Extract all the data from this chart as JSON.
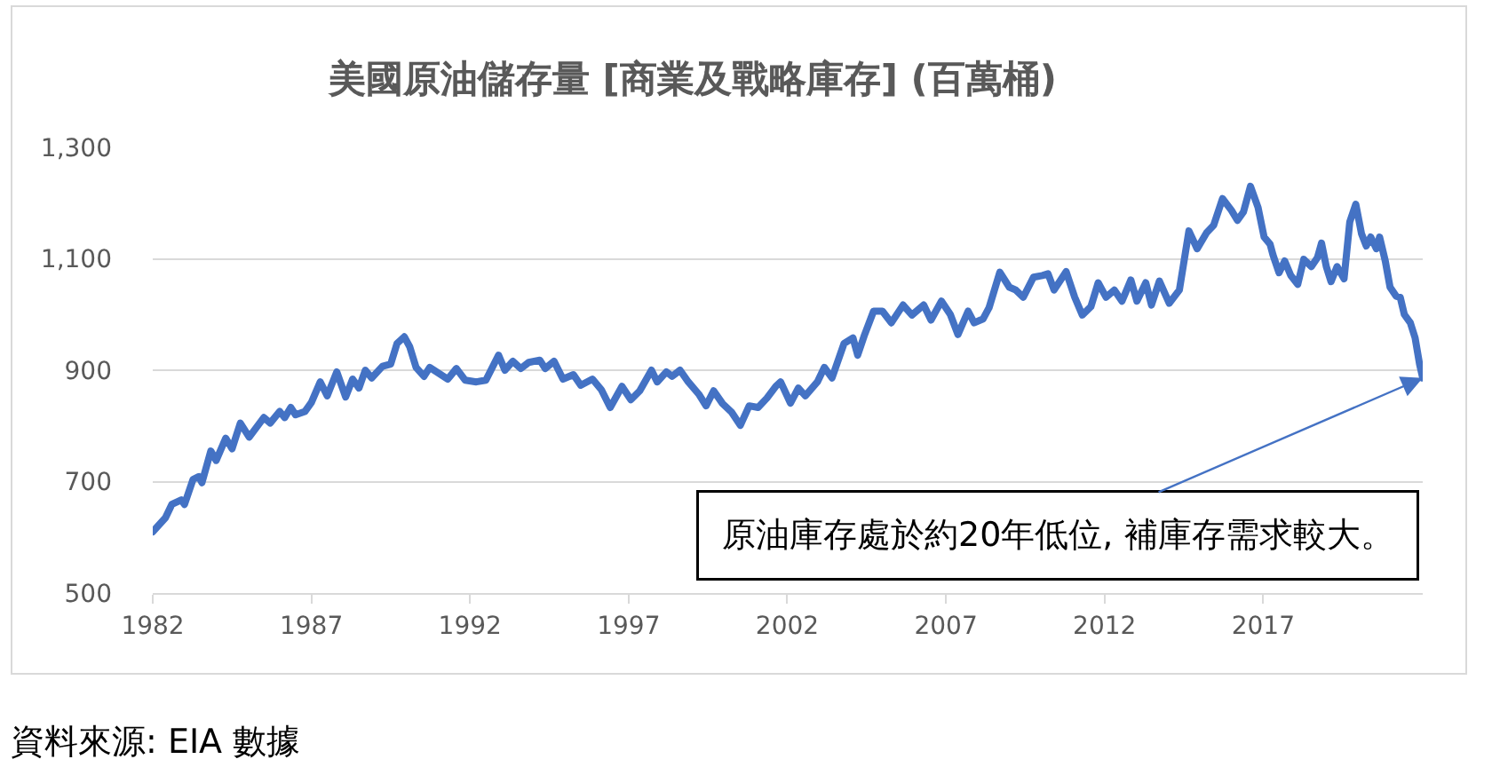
{
  "chart_data": {
    "type": "line",
    "title": "美國原油儲存量 [商業及戰略庫存] (百萬桶)",
    "x": [
      1982.0,
      1982.4,
      1982.6,
      1982.9,
      1983.0,
      1983.27,
      1983.45,
      1983.55,
      1983.83,
      1984.0,
      1984.3,
      1984.5,
      1984.76,
      1985.04,
      1985.5,
      1985.7,
      1986.0,
      1986.16,
      1986.35,
      1986.5,
      1986.8,
      1987.0,
      1987.28,
      1987.5,
      1987.8,
      1988.08,
      1988.3,
      1988.5,
      1988.7,
      1988.9,
      1989.24,
      1989.5,
      1989.7,
      1989.93,
      1990.1,
      1990.3,
      1990.55,
      1990.73,
      1991.0,
      1991.3,
      1991.57,
      1991.85,
      1992.2,
      1992.5,
      1992.9,
      1993.1,
      1993.35,
      1993.6,
      1993.85,
      1994.2,
      1994.37,
      1994.65,
      1994.93,
      1995.26,
      1995.49,
      1995.86,
      1996.14,
      1996.42,
      1996.79,
      1997.07,
      1997.35,
      1997.72,
      1997.9,
      1998.19,
      1998.37,
      1998.62,
      1998.88,
      1999.21,
      1999.44,
      1999.68,
      1999.96,
      2000.24,
      2000.52,
      2000.8,
      2001.08,
      2001.36,
      2001.64,
      2001.79,
      2002.1,
      2002.35,
      2002.57,
      2002.95,
      2003.17,
      2003.41,
      2003.79,
      2004.07,
      2004.22,
      2004.44,
      2004.72,
      2005.0,
      2005.28,
      2005.65,
      2005.93,
      2006.3,
      2006.53,
      2006.86,
      2007.14,
      2007.38,
      2007.7,
      2007.89,
      2008.17,
      2008.36,
      2008.7,
      2009.0,
      2009.2,
      2009.44,
      2009.76,
      2010.04,
      2010.22,
      2010.41,
      2010.79,
      2011.06,
      2011.3,
      2011.57,
      2011.8,
      2012.05,
      2012.31,
      2012.55,
      2012.83,
      2013.02,
      2013.3,
      2013.48,
      2013.73,
      2014.04,
      2014.36,
      2014.66,
      2014.92,
      2015.22,
      2015.44,
      2015.72,
      2016.0,
      2016.19,
      2016.38,
      2016.6,
      2016.84,
      2017.03,
      2017.22,
      2017.31,
      2017.5,
      2017.68,
      2017.87,
      2018.09,
      2018.28,
      2018.52,
      2018.71,
      2018.84,
      2018.99,
      2019.14,
      2019.33,
      2019.55,
      2019.73,
      2019.92,
      2020.1,
      2020.25,
      2020.39,
      2020.57,
      2020.67,
      2020.85,
      2021.0,
      2021.19,
      2021.32,
      2021.45,
      2021.64,
      2021.79,
      2021.93,
      2022.03
    ],
    "values": [
      610,
      635,
      659,
      667,
      659,
      704,
      709,
      698,
      755,
      738,
      778,
      759,
      805,
      780,
      815,
      805,
      826,
      815,
      833,
      820,
      826,
      842,
      879,
      854,
      897,
      852,
      884,
      868,
      900,
      886,
      907,
      911,
      948,
      960,
      942,
      905,
      889,
      905,
      895,
      884,
      903,
      882,
      879,
      882,
      927,
      900,
      916,
      903,
      914,
      918,
      903,
      916,
      884,
      892,
      873,
      884,
      865,
      833,
      871,
      847,
      863,
      900,
      879,
      897,
      889,
      900,
      879,
      857,
      836,
      863,
      840,
      825,
      801,
      836,
      833,
      850,
      871,
      879,
      841,
      868,
      854,
      879,
      905,
      886,
      948,
      958,
      927,
      964,
      1006,
      1006,
      985,
      1017,
      999,
      1017,
      990,
      1024,
      1000,
      964,
      1006,
      985,
      992,
      1012,
      1076,
      1049,
      1044,
      1031,
      1067,
      1070,
      1073,
      1044,
      1077,
      1031,
      999,
      1014,
      1057,
      1031,
      1044,
      1024,
      1062,
      1024,
      1057,
      1017,
      1060,
      1020,
      1044,
      1150,
      1118,
      1147,
      1160,
      1208,
      1187,
      1169,
      1184,
      1230,
      1192,
      1139,
      1126,
      1107,
      1075,
      1096,
      1070,
      1054,
      1099,
      1086,
      1102,
      1128,
      1086,
      1059,
      1086,
      1064,
      1166,
      1198,
      1145,
      1123,
      1139,
      1118,
      1139,
      1096,
      1049,
      1033,
      1031,
      1000,
      985,
      958,
      911,
      886
    ],
    "color": "#4472c4",
    "xlim": [
      1982,
      2022.03
    ],
    "xticks": [
      1982,
      1987,
      1992,
      1997,
      2002,
      2007,
      2012,
      2017
    ],
    "ylim": [
      500,
      1300
    ],
    "yticks": [
      500,
      700,
      900,
      {
        "value": 1100,
        "label": "1,100"
      },
      {
        "value": 1300,
        "label": "1,300"
      }
    ],
    "grid": "y",
    "annotations": [
      {
        "text": "原油庫存處於約20年低位, 補庫存需求較大。",
        "x": 2022.03,
        "y": 886
      },
      "資料來源: EIA 數據"
    ]
  }
}
